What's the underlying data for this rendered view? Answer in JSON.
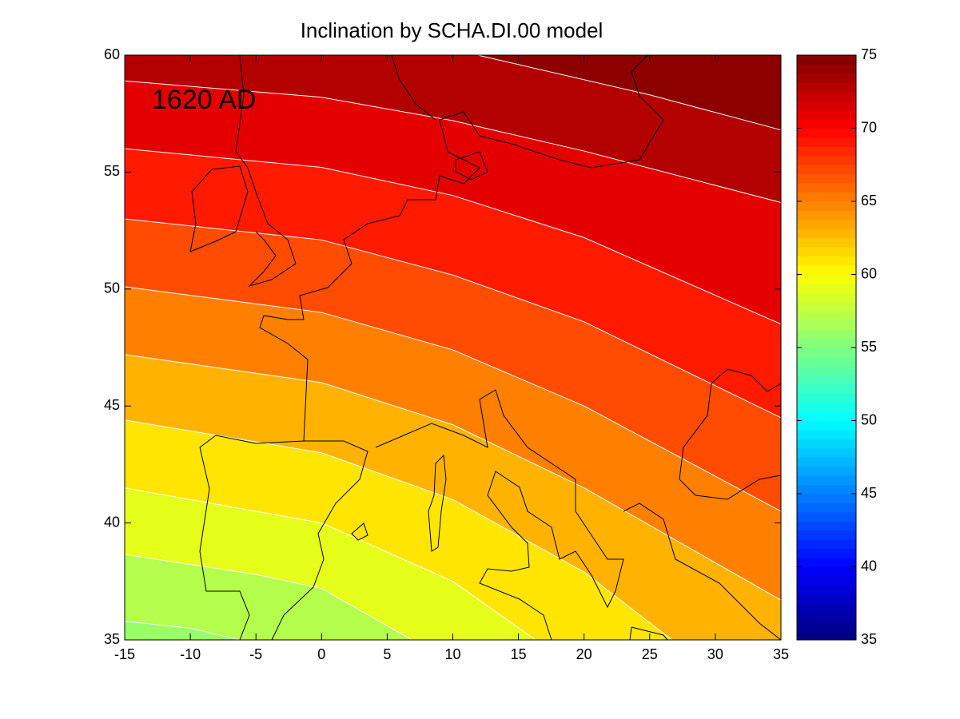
{
  "chart_data": {
    "type": "contour",
    "title": "Inclination by SCHA.DI.00 model",
    "annotation": "1620 AD",
    "colormap": "jet",
    "xlim": [
      -15,
      35
    ],
    "xticks": [
      -15,
      -10,
      -5,
      0,
      5,
      10,
      15,
      20,
      25,
      30,
      35
    ],
    "ylim": [
      35,
      60
    ],
    "yticks": [
      35,
      40,
      45,
      50,
      55,
      60
    ],
    "clim": [
      35,
      75
    ],
    "cticks": [
      35,
      40,
      45,
      50,
      55,
      60,
      65,
      70,
      75
    ],
    "contours": [
      {
        "level": 56,
        "x": [
          -15,
          -10,
          -6.2
        ],
        "y": [
          35.8,
          35.5,
          35
        ]
      },
      {
        "level": 58,
        "x": [
          -15,
          -5,
          0,
          6.9
        ],
        "y": [
          38.65,
          37.8,
          37.2,
          35
        ]
      },
      {
        "level": 60,
        "x": [
          -15,
          0,
          10,
          16.3
        ],
        "y": [
          41.5,
          40,
          37.5,
          35
        ]
      },
      {
        "level": 62,
        "x": [
          -15,
          0,
          10,
          20,
          26.7
        ],
        "y": [
          44.4,
          43,
          41,
          37.9,
          35
        ]
      },
      {
        "level": 64,
        "x": [
          -15,
          0,
          10,
          20,
          35
        ],
        "y": [
          47.2,
          46,
          44.2,
          41.5,
          36.7
        ]
      },
      {
        "level": 66,
        "x": [
          -15,
          0,
          10,
          20,
          35
        ],
        "y": [
          50.1,
          49,
          47.4,
          45,
          40.5
        ]
      },
      {
        "level": 68,
        "x": [
          -15,
          0,
          10,
          20,
          35
        ],
        "y": [
          53,
          52.1,
          50.6,
          48.6,
          44.5
        ]
      },
      {
        "level": 70,
        "x": [
          -15,
          0,
          10,
          20,
          35
        ],
        "y": [
          56,
          55.2,
          54,
          52.2,
          48.5
        ]
      },
      {
        "level": 72,
        "x": [
          -15,
          0,
          10,
          20,
          35
        ],
        "y": [
          58.9,
          58.2,
          57.2,
          55.9,
          53.7
        ]
      },
      {
        "level": 74,
        "x": [
          11.9,
          25,
          35
        ],
        "y": [
          60,
          58.3,
          56.8
        ]
      }
    ]
  }
}
